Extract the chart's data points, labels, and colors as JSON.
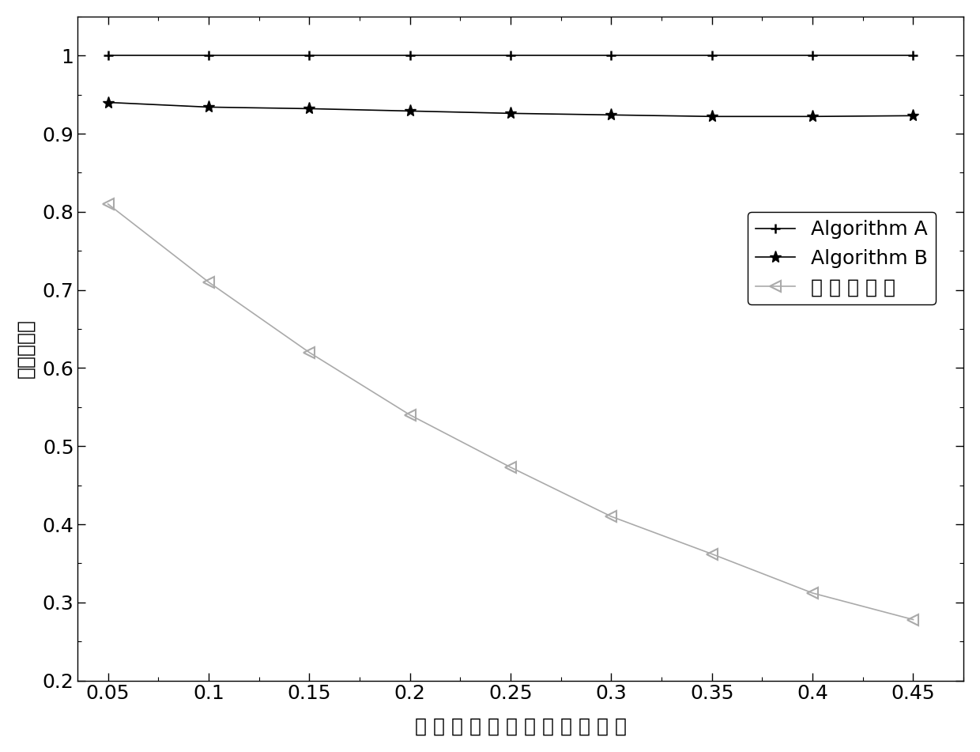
{
  "x": [
    0.05,
    0.1,
    0.15,
    0.2,
    0.25,
    0.3,
    0.35,
    0.4,
    0.45
  ],
  "algo_a": [
    1.0,
    1.0,
    1.0,
    1.0,
    1.0,
    1.0,
    1.0,
    1.0,
    1.0
  ],
  "algo_b": [
    0.94,
    0.934,
    0.932,
    0.929,
    0.926,
    0.924,
    0.922,
    0.922,
    0.923
  ],
  "algo_c": [
    0.81,
    0.71,
    0.62,
    0.54,
    0.473,
    0.41,
    0.362,
    0.312,
    0.278
  ],
  "xlabel": "低 关 键 层 次 偶 发 任 务 利 用 率",
  "ylabel": "归一化能耗",
  "legend_a": "Algorithm A",
  "legend_b": "Algorithm B",
  "legend_c": "本 发 明 方 法",
  "xlim": [
    0.035,
    0.475
  ],
  "ylim": [
    0.2,
    1.05
  ],
  "xticks": [
    0.05,
    0.1,
    0.15,
    0.2,
    0.25,
    0.3,
    0.35,
    0.4,
    0.45
  ],
  "yticks": [
    0.2,
    0.3,
    0.4,
    0.5,
    0.6,
    0.7,
    0.8,
    0.9,
    1.0
  ],
  "color_a": "#000000",
  "color_b": "#000000",
  "color_c": "#aaaaaa",
  "background_color": "#ffffff",
  "tick_fontsize": 18,
  "label_fontsize": 18,
  "legend_fontsize": 18
}
